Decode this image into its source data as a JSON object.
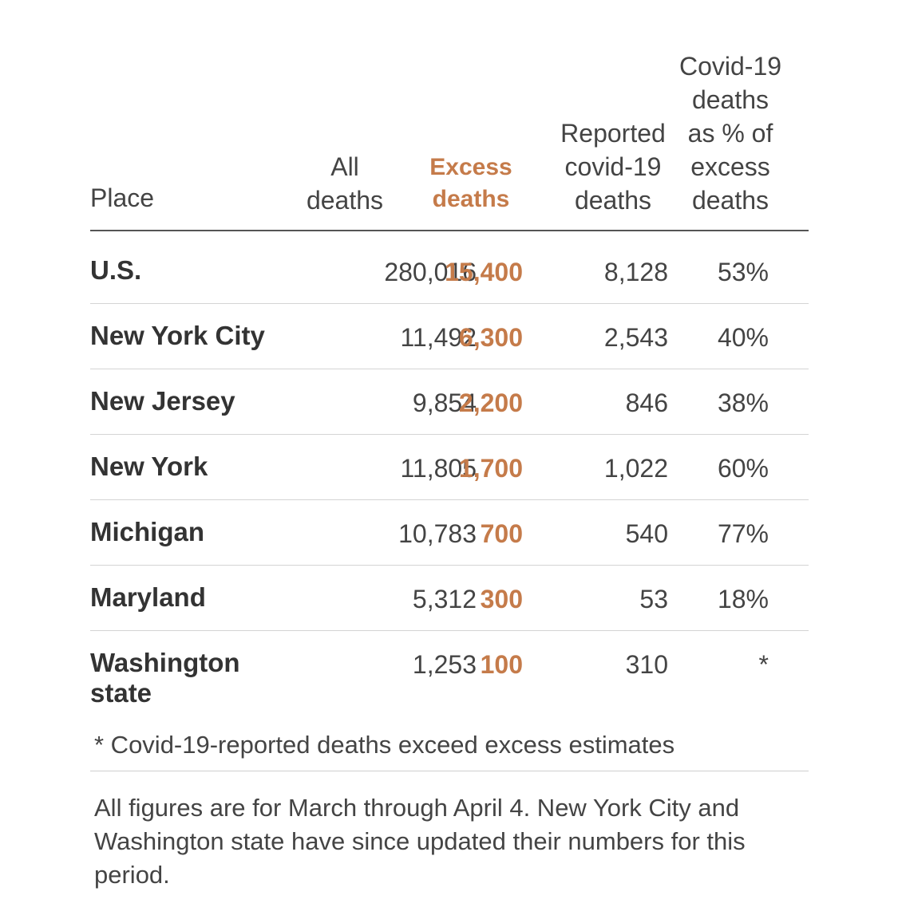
{
  "chart_data": {
    "type": "table",
    "columns": {
      "place": "Place",
      "all": "All\ndeaths",
      "excess": "Excess\ndeaths",
      "reported": "Reported\ncovid-19\ndeaths",
      "share": "Covid-19\ndeaths\nas % of\nexcess\ndeaths"
    },
    "rows": [
      {
        "place": "U.S.",
        "all": "280,016",
        "excess": "15,400",
        "reported": "8,128",
        "share": "53%"
      },
      {
        "place": "New York City",
        "all": "11,492",
        "excess": "6,300",
        "reported": "2,543",
        "share": "40%"
      },
      {
        "place": "New Jersey",
        "all": "9,854",
        "excess": "2,200",
        "reported": "846",
        "share": "38%"
      },
      {
        "place": "New York",
        "all": "11,805",
        "excess": "1,700",
        "reported": "1,022",
        "share": "60%"
      },
      {
        "place": "Michigan",
        "all": "10,783",
        "excess": "700",
        "reported": "540",
        "share": "77%"
      },
      {
        "place": "Maryland",
        "all": "5,312",
        "excess": "300",
        "reported": "53",
        "share": "18%"
      },
      {
        "place": "Washington\nstate",
        "all": "1,253",
        "excess": "100",
        "reported": "310",
        "share": "*"
      }
    ],
    "footnote": "* Covid-19-reported deaths exceed excess estimates",
    "note": "All figures are for March through April 4. New York City and Washington state have since updated their numbers for this period."
  },
  "colors": {
    "accent": "#c57b4a",
    "text": "#333333",
    "rule": "#555555"
  }
}
